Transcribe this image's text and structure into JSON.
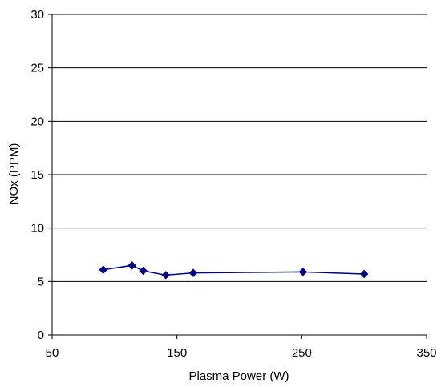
{
  "chart_data": {
    "type": "line",
    "title": "",
    "xlabel": "Plasma Power  (W)",
    "ylabel": "NOx (PPM)",
    "xlim": [
      50,
      350
    ],
    "ylim": [
      0,
      30
    ],
    "x_ticks": [
      50,
      150,
      250,
      350
    ],
    "y_ticks": [
      0,
      5,
      10,
      15,
      20,
      25,
      30
    ],
    "x_tick_labels": [
      "50",
      "150",
      "250",
      "350"
    ],
    "y_tick_labels": [
      "0",
      "5",
      "10",
      "15",
      "20",
      "25",
      "30"
    ],
    "grid": "horizontal",
    "legend": "none",
    "series": [
      {
        "color": "#000080",
        "marker": "diamond",
        "x": [
          91,
          114,
          123,
          141,
          163,
          251,
          300
        ],
        "y": [
          6.1,
          6.5,
          6.0,
          5.6,
          5.8,
          5.9,
          5.7
        ]
      }
    ]
  }
}
